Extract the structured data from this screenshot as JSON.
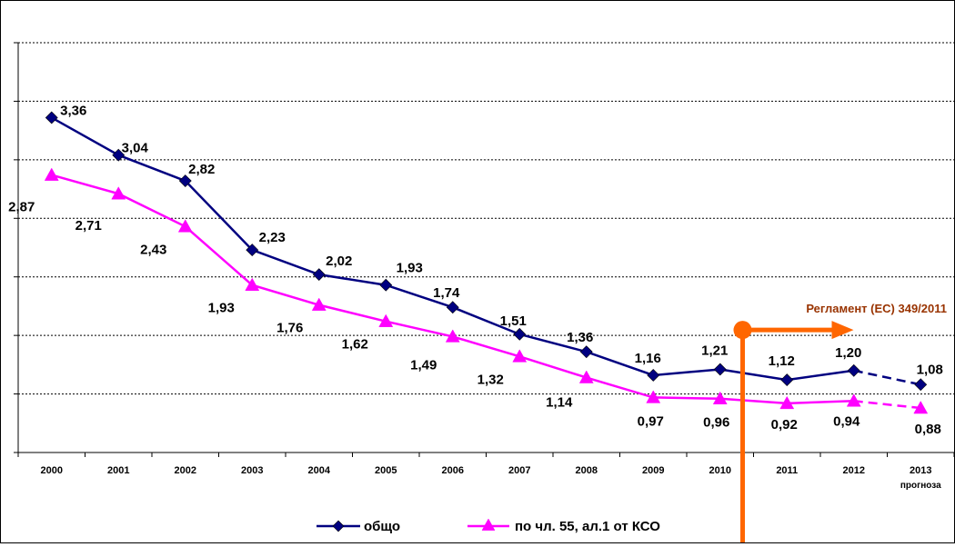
{
  "chart_data": {
    "type": "line",
    "categories": [
      "2000",
      "2001",
      "2002",
      "2003",
      "2004",
      "2005",
      "2006",
      "2007",
      "2008",
      "2009",
      "2010",
      "2011",
      "2012",
      "2013"
    ],
    "category_sublabels": {
      "2013": "прогноза"
    },
    "series": [
      {
        "name": "общо",
        "color": "#000080",
        "marker": "diamond",
        "values": [
          3.36,
          3.04,
          2.82,
          2.23,
          2.02,
          1.93,
          1.74,
          1.51,
          1.36,
          1.16,
          1.21,
          1.12,
          1.2,
          1.08
        ],
        "labels": [
          "3,36",
          "3,04",
          "2,82",
          "2,23",
          "2,02",
          "1,93",
          "1,74",
          "1,51",
          "1,36",
          "1,16",
          "1,21",
          "1,12",
          "1,20",
          "1,08"
        ],
        "dashed_from_index": 12
      },
      {
        "name": "по чл. 55, ал.1 от КСО",
        "color": "#ff00ff",
        "marker": "triangle",
        "values": [
          2.87,
          2.71,
          2.43,
          1.93,
          1.76,
          1.62,
          1.49,
          1.32,
          1.14,
          0.97,
          0.96,
          0.92,
          0.94,
          0.88
        ],
        "labels": [
          "2,87",
          "2,71",
          "2,43",
          "1,93",
          "1,76",
          "1,62",
          "1,49",
          "1,32",
          "1,14",
          "0,97",
          "0,96",
          "0,92",
          "0,94",
          "0,88"
        ],
        "dashed_from_index": 12
      }
    ],
    "ylim": [
      0.5,
      4.0
    ],
    "grid": true,
    "y_tick_labels_visible": false,
    "legend_position": "bottom",
    "annotation": {
      "text": "Регламент (ЕС) 349/2011",
      "color": "#ff6600",
      "text_color": "#993300",
      "between_categories": [
        "2010",
        "2011"
      ]
    }
  }
}
